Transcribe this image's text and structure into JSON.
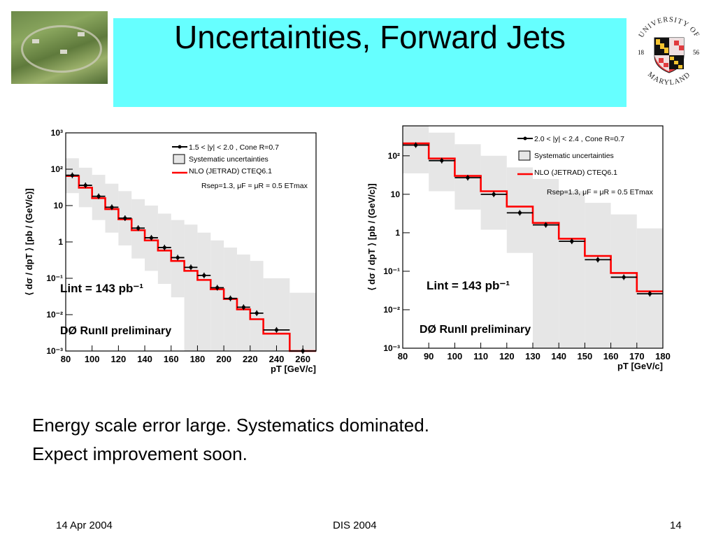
{
  "slide": {
    "title": "Uncertainties, Forward Jets",
    "body_lines": [
      "Energy scale error large.  Systematics dominated.",
      "Expect improvement soon."
    ],
    "footer": {
      "date": "14 Apr 2004",
      "conference": "DIS 2004",
      "page": "14"
    },
    "logo": {
      "arc_text": "UNIVERSITY OF",
      "bottom_text": "MARYLAND",
      "year_left": "18",
      "year_right": "56"
    },
    "colors": {
      "title_bg": "#66ffff",
      "nlo_line": "#ff0000",
      "syst_band": "#e6e6e6"
    }
  },
  "chart_data": [
    {
      "type": "line",
      "ylog": true,
      "xlim": [
        80,
        270
      ],
      "ylim": [
        0.001,
        1000
      ],
      "xticks": [
        80,
        100,
        120,
        140,
        160,
        180,
        200,
        220,
        240,
        260
      ],
      "xtick_labels": [
        "80",
        "100",
        "120",
        "140",
        "160",
        "180",
        "200",
        "220",
        "240",
        "260"
      ],
      "yticks": [
        0.001,
        0.01,
        0.1,
        1,
        10,
        100,
        1000
      ],
      "ytick_labels": [
        "10⁻³",
        "10⁻²",
        "10⁻¹",
        "1",
        "10",
        "10²",
        "10³"
      ],
      "xlabel": "pT [GeV/c]",
      "ylabel": "⟨ dσ / dpT ⟩  [pb / (GeV/c)]",
      "legend": [
        "1.5 < |y| < 2.0 , Cone R=0.7",
        "Systematic uncertainties",
        "NLO (JETRAD) CTEQ6.1",
        "Rsep=1.3, μF = μR = 0.5 ETmax"
      ],
      "annotations": [
        "Lint = 143 pb⁻¹",
        "DØ RunII preliminary"
      ],
      "bins": [
        80,
        90,
        100,
        110,
        120,
        130,
        140,
        150,
        160,
        170,
        180,
        190,
        200,
        210,
        220,
        230,
        250,
        270
      ],
      "data": [
        68,
        36,
        18,
        9,
        4.5,
        2.4,
        1.3,
        0.7,
        0.37,
        0.2,
        0.12,
        0.055,
        0.028,
        0.016,
        0.011,
        0.0038,
        0.001
      ],
      "nlo": [
        65,
        31,
        16,
        8,
        4.2,
        2.1,
        1.1,
        0.58,
        0.3,
        0.16,
        0.09,
        0.05,
        0.027,
        0.014,
        0.0075,
        0.003,
        0.0007
      ],
      "syst_lo": [
        22,
        9,
        4,
        1.8,
        0.8,
        0.35,
        0.16,
        0.07,
        0.03,
        0.001,
        0.001,
        0.001,
        0.001,
        0.001,
        0.001,
        0.001,
        0.001
      ],
      "syst_hi": [
        200,
        110,
        70,
        40,
        25,
        15,
        10,
        6,
        4,
        3,
        1.8,
        1.1,
        0.7,
        0.45,
        0.3,
        0.1,
        0.04
      ]
    },
    {
      "type": "line",
      "ylog": true,
      "xlim": [
        80,
        180
      ],
      "ylim": [
        0.001,
        600
      ],
      "xticks": [
        80,
        90,
        100,
        110,
        120,
        130,
        140,
        150,
        160,
        170,
        180
      ],
      "xtick_labels": [
        "80",
        "90",
        "100",
        "110",
        "120",
        "130",
        "140",
        "150",
        "160",
        "170",
        "180"
      ],
      "yticks": [
        0.001,
        0.01,
        0.1,
        1,
        10,
        100
      ],
      "ytick_labels": [
        "10⁻³",
        "10⁻²",
        "10⁻¹",
        "1",
        "10",
        "10²"
      ],
      "xlabel": "pT [GeV/c]",
      "ylabel": "⟨ dσ / dpT ⟩  [pb / (GeV/c)]",
      "legend": [
        "2.0 < |y| < 2.4 , Cone R=0.7",
        "Systematic uncertainties",
        "NLO (JETRAD) CTEQ6.1",
        "Rsep=1.3, μF = μR = 0.5 ETmax"
      ],
      "annotations": [
        "Lint = 143 pb⁻¹",
        "DØ RunII preliminary"
      ],
      "bins": [
        80,
        90,
        100,
        110,
        120,
        130,
        140,
        150,
        160,
        170,
        180
      ],
      "data": [
        190,
        75,
        27,
        10,
        3.3,
        1.6,
        0.6,
        0.2,
        0.07,
        0.026
      ],
      "nlo": [
        210,
        85,
        30,
        12,
        4.8,
        1.8,
        0.7,
        0.25,
        0.09,
        0.03
      ],
      "syst_lo": [
        35,
        12,
        4,
        1.2,
        0.3,
        0.001,
        0.001,
        0.001,
        0.001,
        0.001
      ],
      "syst_hi": [
        600,
        400,
        200,
        100,
        50,
        25,
        12,
        6,
        3,
        1.3
      ]
    }
  ]
}
